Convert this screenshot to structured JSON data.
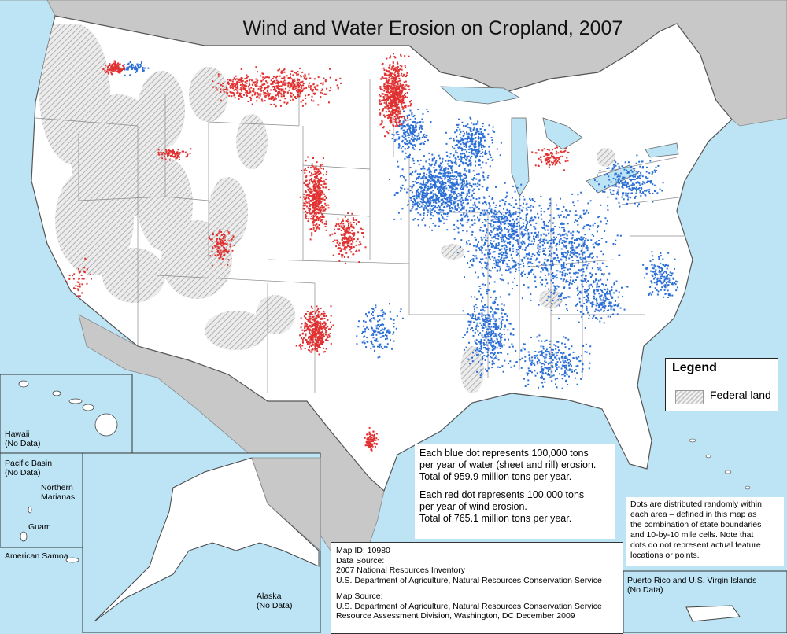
{
  "title": "Wind and Water Erosion on Cropland, 2007",
  "legend": {
    "title": "Legend",
    "items": [
      {
        "label": "Federal land",
        "pattern": "gray-hatch"
      }
    ]
  },
  "dot_info": {
    "blue_line1": "Each blue dot represents 100,000 tons",
    "blue_line2": "per year of water (sheet and rill) erosion.",
    "blue_total": "Total of 959.9 million tons per year.",
    "red_line1": "Each red dot represents 100,000 tons",
    "red_line2": "per year of wind erosion.",
    "red_total": "Total of 765.1 million tons per year."
  },
  "note": {
    "line1": "Dots are distributed randomly within",
    "line2": "each area – defined in this map as",
    "line3": "the combination of state boundaries",
    "line4": "and 10-by-10 mile cells.  Note that",
    "line5": "dots do not represent actual feature",
    "line6": "locations or points."
  },
  "source": {
    "map_id": "Map ID:  10980",
    "data_source_label": "Data Source:",
    "data_source_1": "2007 National Resources Inventory",
    "data_source_2": "U.S. Department of Agriculture, Natural Resources Conservation Service",
    "map_source_label": "Map Source:",
    "map_source_1": "U.S. Department of Agriculture, Natural Resources Conservation Service",
    "map_source_2": "Resource Assessment Division, Washington, DC    December 2009"
  },
  "insets": {
    "hawaii_1": "Hawaii",
    "hawaii_2": "(No Data)",
    "pacific_1": "Pacific Basin",
    "pacific_2": "(No Data)",
    "marianas_1": "Northern",
    "marianas_2": "Marianas",
    "guam": "Guam",
    "samoa": "American Samoa",
    "alaska_1": "Alaska",
    "alaska_2": "(No Data)",
    "pr_1": "Puerto Rico and U.S. Virgin Islands",
    "pr_2": "(No Data)"
  },
  "colors": {
    "water": "#bde4f5",
    "land": "#ffffff",
    "neighbor_land": "#c8c8c8",
    "federal_hatch": "#b8b8b8",
    "water_dot": "#2b6fd6",
    "wind_dot": "#e03030",
    "state_line": "#8a8a8a"
  }
}
